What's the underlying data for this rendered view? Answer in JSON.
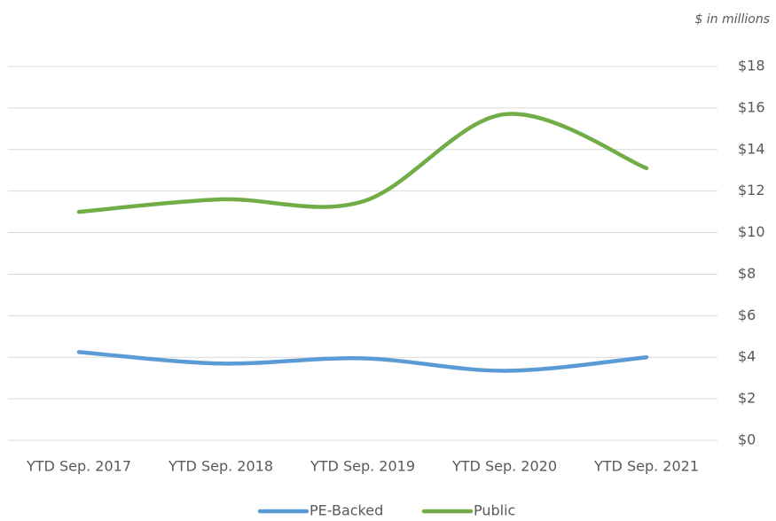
{
  "chart_data": {
    "type": "line",
    "annotation": "$ in millions",
    "categories": [
      "YTD Sep. 2017",
      "YTD Sep. 2018",
      "YTD Sep. 2019",
      "YTD Sep. 2020",
      "YTD Sep. 2021"
    ],
    "series": [
      {
        "name": "PE-Backed",
        "color": "#5b9bd5",
        "values": [
          4.25,
          3.7,
          3.95,
          3.35,
          4.0
        ]
      },
      {
        "name": "Public",
        "color": "#70ad47",
        "values": [
          11.0,
          11.6,
          11.5,
          15.7,
          13.1
        ]
      }
    ],
    "ylim": [
      0,
      18
    ],
    "yticks": [
      {
        "value": 0,
        "label": "$0"
      },
      {
        "value": 2,
        "label": "$2"
      },
      {
        "value": 4,
        "label": "$4"
      },
      {
        "value": 6,
        "label": "$6"
      },
      {
        "value": 8,
        "label": "$8"
      },
      {
        "value": 10,
        "label": "$10"
      },
      {
        "value": 12,
        "label": "$12"
      },
      {
        "value": 14,
        "label": "$14"
      },
      {
        "value": 16,
        "label": "$16"
      },
      {
        "value": 18,
        "label": "$18"
      }
    ],
    "grid": true,
    "smooth": true,
    "legend": "bottom"
  }
}
